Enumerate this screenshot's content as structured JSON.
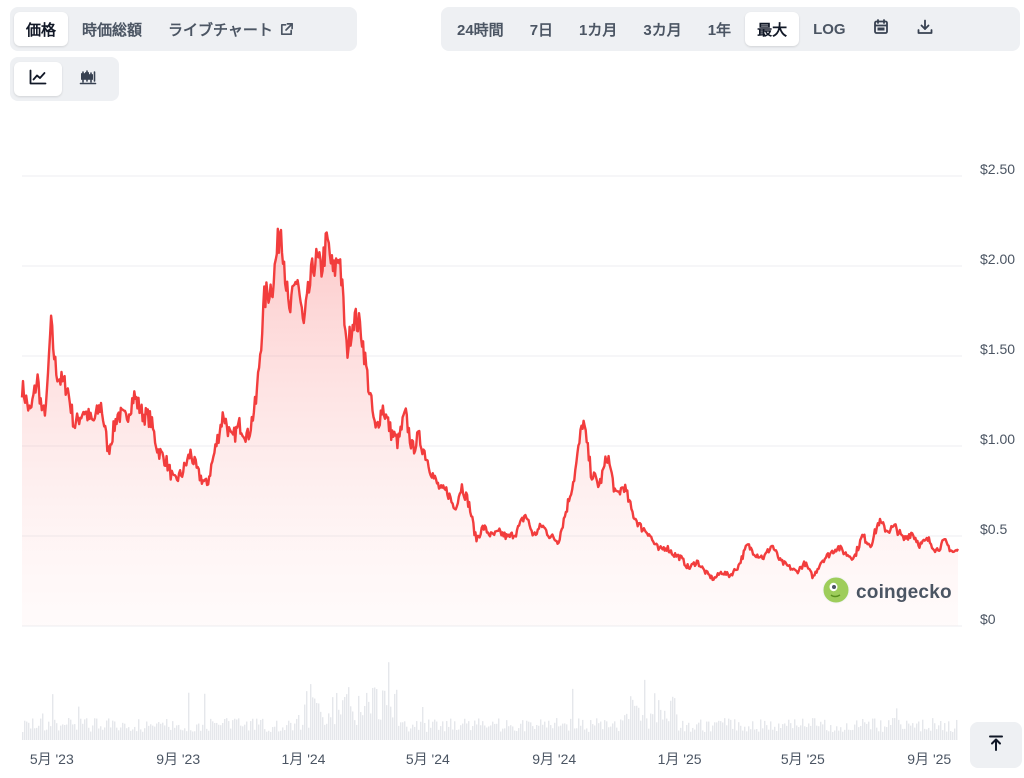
{
  "tabs": [
    {
      "label": "価格",
      "active": true
    },
    {
      "label": "時価総額",
      "active": false
    },
    {
      "label": "ライブチャート",
      "active": false,
      "external": true
    }
  ],
  "ranges": [
    {
      "label": "24時間",
      "active": false
    },
    {
      "label": "7日",
      "active": false
    },
    {
      "label": "1カ月",
      "active": false
    },
    {
      "label": "3カ月",
      "active": false
    },
    {
      "label": "1年",
      "active": false
    },
    {
      "label": "最大",
      "active": true
    },
    {
      "label": "LOG",
      "active": false
    }
  ],
  "toolbar_icons": [
    "calendar-icon",
    "download-icon"
  ],
  "chart_types": [
    {
      "icon": "line-chart-icon",
      "active": true
    },
    {
      "icon": "candlestick-icon",
      "active": false
    }
  ],
  "watermark": {
    "text": "coingecko",
    "icon": "coingecko-logo"
  },
  "scroll_top_icon": "arrow-up-to-top-icon",
  "colors": {
    "line": "#f23d3d",
    "fill": "#fde2e2",
    "volume": "#e5e7eb",
    "grid": "#eceef1"
  },
  "chart_data": {
    "type": "area",
    "title": "",
    "xlabel": "",
    "ylabel": "",
    "ylim": [
      0,
      2.5
    ],
    "y_ticks": [
      {
        "value": 0,
        "label": "$0"
      },
      {
        "value": 0.5,
        "label": "$0.5"
      },
      {
        "value": 1.0,
        "label": "$1.00"
      },
      {
        "value": 1.5,
        "label": "$1.50"
      },
      {
        "value": 2.0,
        "label": "$2.00"
      },
      {
        "value": 2.5,
        "label": "$2.50"
      }
    ],
    "x_ticks": [
      {
        "date": "2023-05-01",
        "label": "5月 '23"
      },
      {
        "date": "2023-09-01",
        "label": "9月 '23"
      },
      {
        "date": "2024-01-01",
        "label": "1月 '24"
      },
      {
        "date": "2024-05-01",
        "label": "5月 '24"
      },
      {
        "date": "2024-09-01",
        "label": "9月 '24"
      },
      {
        "date": "2025-01-01",
        "label": "1月 '25"
      },
      {
        "date": "2025-05-01",
        "label": "5月 '25"
      },
      {
        "date": "2025-09-01",
        "label": "9月 '25"
      }
    ],
    "x_range": [
      "2023-04-02",
      "2025-09-29"
    ],
    "grid": true,
    "legend": "none",
    "series": [
      {
        "x": [
          "2023-04-02",
          "2023-04-10",
          "2023-04-17",
          "2023-04-22",
          "2023-04-26",
          "2023-04-30",
          "2023-05-05",
          "2023-05-10",
          "2023-05-16",
          "2023-05-23",
          "2023-06-01",
          "2023-06-10",
          "2023-06-18",
          "2023-06-25",
          "2023-07-04",
          "2023-07-12",
          "2023-07-20",
          "2023-07-28",
          "2023-08-05",
          "2023-08-12",
          "2023-08-20",
          "2023-08-28",
          "2023-09-05",
          "2023-09-13",
          "2023-09-21",
          "2023-09-29",
          "2023-10-07",
          "2023-10-15",
          "2023-10-23",
          "2023-10-31",
          "2023-11-08",
          "2023-11-16",
          "2023-11-24",
          "2023-12-02",
          "2023-12-10",
          "2023-12-18",
          "2023-12-26",
          "2024-01-01",
          "2024-01-05",
          "2024-01-12",
          "2024-01-18",
          "2024-01-24",
          "2024-01-30",
          "2024-02-05",
          "2024-02-12",
          "2024-02-19",
          "2024-02-26",
          "2024-03-04",
          "2024-03-11",
          "2024-03-18",
          "2024-03-26",
          "2024-04-02",
          "2024-04-09",
          "2024-04-16",
          "2024-04-22",
          "2024-04-29",
          "2024-05-07",
          "2024-05-14",
          "2024-05-20",
          "2024-05-27",
          "2024-06-03",
          "2024-06-10",
          "2024-06-17",
          "2024-06-24",
          "2024-07-02",
          "2024-07-10",
          "2024-07-18",
          "2024-07-26",
          "2024-08-04",
          "2024-08-12",
          "2024-08-20",
          "2024-08-28",
          "2024-09-05",
          "2024-09-13",
          "2024-09-21",
          "2024-09-29",
          "2024-10-07",
          "2024-10-15",
          "2024-10-23",
          "2024-10-31",
          "2024-11-08",
          "2024-11-16",
          "2024-11-24",
          "2024-12-02",
          "2024-12-06",
          "2024-12-12",
          "2024-12-19",
          "2024-12-26",
          "2025-01-02",
          "2025-01-10",
          "2025-01-18",
          "2025-01-26",
          "2025-02-03",
          "2025-02-11",
          "2025-02-19",
          "2025-02-27",
          "2025-03-08",
          "2025-03-16",
          "2025-03-24",
          "2025-04-01",
          "2025-04-09",
          "2025-04-17",
          "2025-04-25",
          "2025-05-03",
          "2025-05-11",
          "2025-05-19",
          "2025-05-27",
          "2025-06-04",
          "2025-06-12",
          "2025-06-20",
          "2025-06-28",
          "2025-07-06",
          "2025-07-14",
          "2025-07-22",
          "2025-07-30",
          "2025-08-07",
          "2025-08-15",
          "2025-08-23",
          "2025-08-31",
          "2025-09-08",
          "2025-09-16",
          "2025-09-24",
          "2025-09-29"
        ],
        "y": [
          1.33,
          1.18,
          1.38,
          1.17,
          1.24,
          1.68,
          1.42,
          1.36,
          1.33,
          1.11,
          1.2,
          1.13,
          1.23,
          0.97,
          1.18,
          1.15,
          1.28,
          1.18,
          1.15,
          0.98,
          0.92,
          0.8,
          0.85,
          0.96,
          0.84,
          0.78,
          0.98,
          1.18,
          1.03,
          1.12,
          1.05,
          1.25,
          1.82,
          1.9,
          2.24,
          1.72,
          1.95,
          1.65,
          1.82,
          2.04,
          1.98,
          2.14,
          1.95,
          2.08,
          1.52,
          1.72,
          1.65,
          1.35,
          1.08,
          1.22,
          1.08,
          1.02,
          1.18,
          0.98,
          1.05,
          0.95,
          0.82,
          0.75,
          0.75,
          0.65,
          0.78,
          0.68,
          0.48,
          0.55,
          0.5,
          0.52,
          0.49,
          0.52,
          0.62,
          0.5,
          0.56,
          0.5,
          0.47,
          0.65,
          0.84,
          1.15,
          0.85,
          0.78,
          0.95,
          0.72,
          0.78,
          0.63,
          0.55,
          0.52,
          0.47,
          0.42,
          0.44,
          0.4,
          0.38,
          0.32,
          0.36,
          0.3,
          0.26,
          0.3,
          0.28,
          0.33,
          0.45,
          0.4,
          0.38,
          0.45,
          0.36,
          0.33,
          0.3,
          0.35,
          0.27,
          0.36,
          0.4,
          0.44,
          0.4,
          0.38,
          0.5,
          0.45,
          0.58,
          0.53,
          0.55,
          0.48,
          0.52,
          0.45,
          0.48,
          0.42,
          0.47,
          0.41,
          0.42
        ]
      }
    ]
  }
}
